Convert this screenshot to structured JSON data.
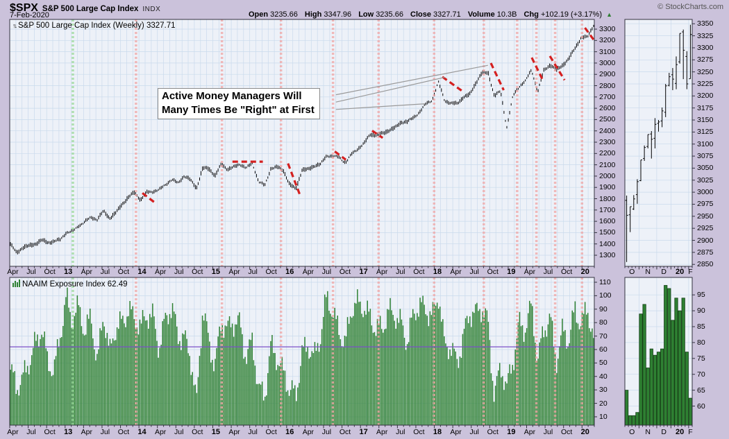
{
  "header": {
    "symbol": "$SPX",
    "name": "S&P 500 Large Cap Index",
    "exchange": "INDX",
    "date": "7-Feb-2020",
    "copyright": "© StockCharts.com",
    "quote": [
      {
        "label": "Open",
        "value": "3235.66"
      },
      {
        "label": "High",
        "value": "3347.96"
      },
      {
        "label": "Low",
        "value": "3235.66"
      },
      {
        "label": "Close",
        "value": "3327.71"
      },
      {
        "label": "Volume",
        "value": "10.3B"
      },
      {
        "label": "Chg",
        "value": "+102.19 (+3.17%)"
      }
    ],
    "up_arrow": "▲"
  },
  "panels": {
    "price": {
      "title": "S&P 500 Large Cap Index (Weekly) 3327.71",
      "icon": "↑↓"
    },
    "naaim": {
      "title": "NAAIM Exposure Index 62.49"
    }
  },
  "annotation": {
    "line1": "Active Money Managers Will",
    "line2": "Many Times Be \"Right\" at First"
  },
  "colors": {
    "page_bg": "#cbc2db",
    "panel_bg": "#edf1f8",
    "panel_border": "#33333f",
    "grid": "#c9daec",
    "price": "#000000",
    "bar_green": "#2e8032",
    "bar_green_edge": "#173f17",
    "dash_red": "#d42020",
    "vline_pink": "#f2a5a5",
    "vline_green": "#99da99",
    "hline_purple": "#7a4fc8",
    "pointer_grey": "#999999",
    "arrow_green": "#2e7d32"
  },
  "chart_data": [
    {
      "id": "spx-weekly-main",
      "type": "line",
      "title": "S&P 500 Large Cap Index (Weekly)",
      "last_close": 3327.71,
      "x_start": "Apr 2012",
      "x_end": "Feb 2020",
      "anchor_interval": "monthly",
      "anchor_close": [
        1397,
        1310,
        1362,
        1379,
        1406,
        1440,
        1412,
        1416,
        1426,
        1498,
        1514,
        1569,
        1597,
        1630,
        1606,
        1685,
        1632,
        1681,
        1756,
        1805,
        1848,
        1782,
        1859,
        1872,
        1883,
        1923,
        1960,
        1930,
        2003,
        1972,
        1900,
        2067,
        2058,
        1994,
        2104,
        2067,
        2085,
        2107,
        2063,
        2103,
        1950,
        1920,
        2079,
        2080,
        2043,
        1915,
        1880,
        2059,
        2065,
        2096,
        2098,
        2173,
        2170,
        2168,
        2126,
        2198,
        2238,
        2278,
        2363,
        2362,
        2384,
        2411,
        2423,
        2470,
        2471,
        2519,
        2575,
        2647,
        2673,
        2823,
        2660,
        2640,
        2648,
        2705,
        2718,
        2816,
        2901,
        2913,
        2711,
        2760,
        2430,
        2704,
        2784,
        2834,
        2945,
        2752,
        2941,
        2980,
        2926,
        2976,
        3037,
        3140,
        3230,
        3225,
        3327
      ],
      "ylim": [
        1202,
        3386
      ],
      "yticks": [
        3300,
        3200,
        3100,
        3000,
        2900,
        2800,
        2700,
        2600,
        2500,
        2400,
        2300,
        2200,
        2100,
        2000,
        1900,
        1800,
        1700,
        1600,
        1500,
        1400,
        1300
      ],
      "xticks": [
        {
          "t": "Apr",
          "m": 0
        },
        {
          "t": "Jul",
          "m": 3
        },
        {
          "t": "Oct",
          "m": 6
        },
        {
          "t": "13",
          "m": 9,
          "b": 1
        },
        {
          "t": "Apr",
          "m": 12
        },
        {
          "t": "Jul",
          "m": 15
        },
        {
          "t": "Oct",
          "m": 18
        },
        {
          "t": "14",
          "m": 21,
          "b": 1
        },
        {
          "t": "Apr",
          "m": 24
        },
        {
          "t": "Jul",
          "m": 27
        },
        {
          "t": "Oct",
          "m": 30
        },
        {
          "t": "15",
          "m": 33,
          "b": 1
        },
        {
          "t": "Apr",
          "m": 36
        },
        {
          "t": "Jul",
          "m": 39
        },
        {
          "t": "Oct",
          "m": 42
        },
        {
          "t": "16",
          "m": 45,
          "b": 1
        },
        {
          "t": "Apr",
          "m": 48
        },
        {
          "t": "Jul",
          "m": 51
        },
        {
          "t": "Oct",
          "m": 54
        },
        {
          "t": "17",
          "m": 57,
          "b": 1
        },
        {
          "t": "Apr",
          "m": 60
        },
        {
          "t": "Jul",
          "m": 63
        },
        {
          "t": "Oct",
          "m": 66
        },
        {
          "t": "18",
          "m": 69,
          "b": 1
        },
        {
          "t": "Apr",
          "m": 72
        },
        {
          "t": "Jul",
          "m": 75
        },
        {
          "t": "Oct",
          "m": 78
        },
        {
          "t": "19",
          "m": 81,
          "b": 1
        },
        {
          "t": "Apr",
          "m": 84
        },
        {
          "t": "Jul",
          "m": 87
        },
        {
          "t": "Oct",
          "m": 90
        },
        {
          "t": "20",
          "m": 93,
          "b": 1
        }
      ],
      "red_dashes": [
        [
          0.227,
          1850,
          0.249,
          1762
        ],
        [
          0.381,
          2128,
          0.433,
          2128
        ],
        [
          0.476,
          2112,
          0.496,
          1840
        ],
        [
          0.556,
          2218,
          0.575,
          2145
        ],
        [
          0.62,
          2402,
          0.638,
          2338
        ],
        [
          0.74,
          2878,
          0.777,
          2742
        ],
        [
          0.823,
          3000,
          0.845,
          2760
        ],
        [
          0.893,
          3048,
          0.912,
          2848
        ],
        [
          0.924,
          3062,
          0.949,
          2850
        ],
        [
          0.984,
          3312,
          1.0,
          3198
        ]
      ],
      "vline_green": 0.108,
      "vlines_pink": [
        0.216,
        0.363,
        0.464,
        0.553,
        0.631,
        0.726,
        0.811,
        0.868,
        0.901,
        0.933,
        0.979
      ],
      "pointer_lines": [
        {
          "x1": 0.558,
          "p1": 2720,
          "x2": 0.818,
          "p2": 2980
        },
        {
          "x1": 0.558,
          "p1": 2655,
          "x2": 0.745,
          "p2": 2875
        },
        {
          "x1": 0.558,
          "p1": 2590,
          "x2": 0.711,
          "p2": 2640
        }
      ]
    },
    {
      "id": "spx-weekly-zoom",
      "type": "ohlc",
      "x_start": "Oct 2019",
      "x_end": "Feb 2020",
      "ohlc": [
        [
          2983,
          2993,
          2855,
          2952
        ],
        [
          2953,
          2970,
          2917,
          2970
        ],
        [
          2965,
          2994,
          2963,
          2986
        ],
        [
          2995,
          3027,
          2976,
          3022
        ],
        [
          3024,
          3067,
          3023,
          3067
        ],
        [
          3070,
          3097,
          3065,
          3093
        ],
        [
          3095,
          3120,
          3091,
          3120
        ],
        [
          3121,
          3127,
          3070,
          3110
        ],
        [
          3112,
          3154,
          3091,
          3141
        ],
        [
          3143,
          3150,
          3126,
          3146
        ],
        [
          3148,
          3176,
          3135,
          3169
        ],
        [
          3166,
          3225,
          3156,
          3221
        ],
        [
          3222,
          3248,
          3220,
          3240
        ],
        [
          3244,
          3258,
          3212,
          3235
        ],
        [
          3226,
          3282,
          3214,
          3265
        ],
        [
          3271,
          3330,
          3267,
          3330
        ],
        [
          3333,
          3338,
          3235,
          3295
        ],
        [
          3282,
          3293,
          3214,
          3225
        ],
        [
          3235.66,
          3347.96,
          3235.66,
          3327.71
        ]
      ],
      "ylim": [
        2846,
        3359
      ],
      "yticks": [
        3350,
        3325,
        3300,
        3275,
        3250,
        3225,
        3200,
        3175,
        3150,
        3125,
        3100,
        3075,
        3050,
        3025,
        3000,
        2975,
        2950,
        2925,
        2900,
        2875,
        2850
      ],
      "month_bounds_weeks": [
        4,
        9,
        13,
        18
      ],
      "xticks": [
        {
          "t": "O",
          "w": 1.5
        },
        {
          "t": "N",
          "w": 6
        },
        {
          "t": "D",
          "w": 10.5
        },
        {
          "t": "20",
          "w": 15,
          "b": 1
        },
        {
          "t": "F",
          "w": 18
        }
      ]
    },
    {
      "id": "naaim-exposure-main",
      "type": "bar",
      "last_value": 62.49,
      "anchor_interval": "monthly",
      "anchor_values": [
        45,
        25,
        35,
        55,
        70,
        75,
        45,
        40,
        75,
        104,
        80,
        85,
        70,
        90,
        55,
        85,
        50,
        75,
        85,
        95,
        80,
        70,
        85,
        90,
        65,
        80,
        85,
        70,
        75,
        60,
        15,
        85,
        65,
        55,
        85,
        70,
        75,
        80,
        60,
        70,
        25,
        20,
        65,
        60,
        45,
        25,
        20,
        60,
        70,
        55,
        65,
        95,
        90,
        80,
        65,
        85,
        90,
        95,
        90,
        75,
        70,
        85,
        90,
        85,
        65,
        80,
        90,
        95,
        90,
        100,
        55,
        60,
        55,
        75,
        85,
        80,
        90,
        85,
        30,
        45,
        25,
        50,
        85,
        80,
        90,
        45,
        75,
        90,
        55,
        70,
        60,
        90,
        85,
        95,
        62
      ],
      "ylim": [
        3.8,
        113.6
      ],
      "yticks": [
        110,
        100,
        90,
        80,
        70,
        60,
        50,
        40,
        30,
        20,
        10
      ],
      "hline": 62
    },
    {
      "id": "naaim-exposure-zoom",
      "type": "bar",
      "values": [
        65,
        57,
        57,
        58,
        89,
        92,
        72,
        78,
        76,
        77,
        78,
        98,
        97,
        87,
        94,
        90,
        94,
        77,
        62.49
      ],
      "ylim": [
        54,
        100.5
      ],
      "yticks": [
        95,
        90,
        85,
        80,
        75,
        70,
        65,
        60
      ],
      "month_bounds_weeks": [
        4,
        9,
        13,
        18
      ],
      "xticks": [
        {
          "t": "O",
          "w": 1.5
        },
        {
          "t": "N",
          "w": 6
        },
        {
          "t": "D",
          "w": 10.5
        },
        {
          "t": "20",
          "w": 15,
          "b": 1
        },
        {
          "t": "F",
          "w": 18
        }
      ]
    }
  ]
}
